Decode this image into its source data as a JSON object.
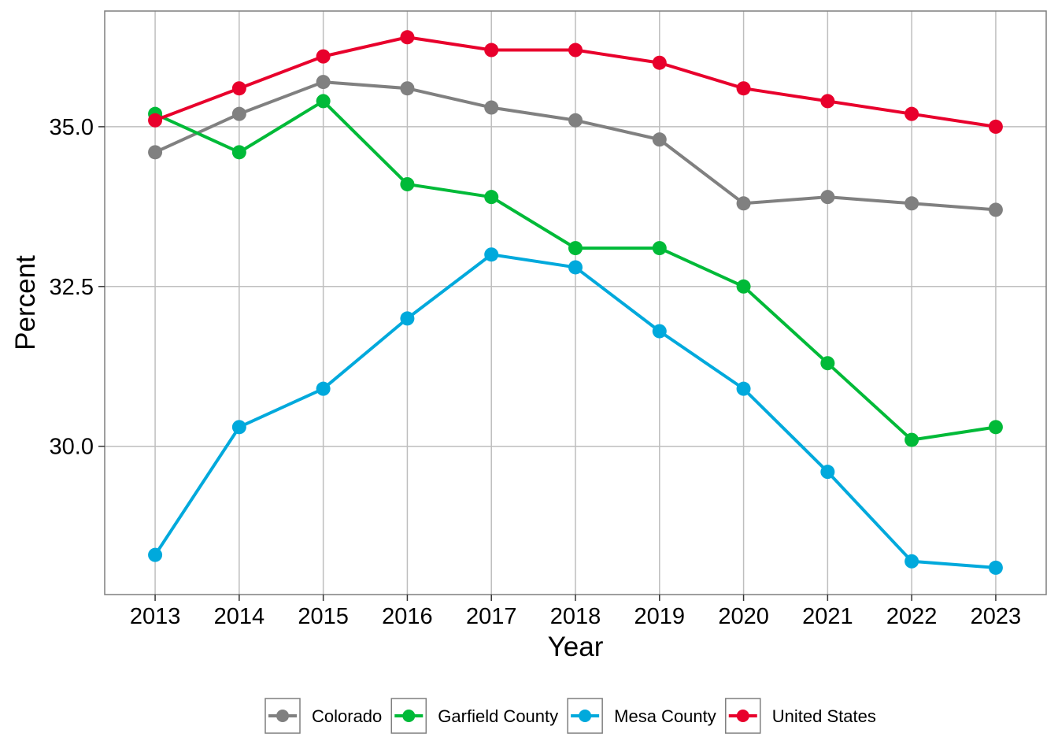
{
  "chart_data": {
    "type": "line",
    "title": "",
    "xlabel": "Year",
    "ylabel": "Percent",
    "x": [
      2013,
      2014,
      2015,
      2016,
      2017,
      2018,
      2019,
      2020,
      2021,
      2022,
      2023
    ],
    "x_tick_labels": [
      "2013",
      "2014",
      "2015",
      "2016",
      "2017",
      "2018",
      "2019",
      "2020",
      "2021",
      "2022",
      "2023"
    ],
    "y_ticks": [
      30.0,
      32.5,
      35.0
    ],
    "y_tick_labels": [
      "30.0",
      "32.5",
      "35.0"
    ],
    "xlim": [
      2012.4,
      2023.6
    ],
    "ylim": [
      27.68,
      36.81
    ],
    "grid": true,
    "legend_position": "bottom",
    "series": [
      {
        "name": "Colorado",
        "color": "#808080",
        "values": [
          34.6,
          35.2,
          35.7,
          35.6,
          35.3,
          35.1,
          34.8,
          33.8,
          33.9,
          33.8,
          33.7
        ]
      },
      {
        "name": "Garfield County",
        "color": "#00BA38",
        "values": [
          35.2,
          34.6,
          35.4,
          34.1,
          33.9,
          33.1,
          33.1,
          32.5,
          31.3,
          30.1,
          30.3
        ]
      },
      {
        "name": "Mesa County",
        "color": "#00A9DC",
        "values": [
          28.3,
          30.3,
          30.9,
          32.0,
          33.0,
          32.8,
          31.8,
          30.9,
          29.6,
          28.2,
          28.1
        ]
      },
      {
        "name": "United States",
        "color": "#E8002C",
        "values": [
          35.1,
          35.6,
          36.1,
          36.4,
          36.2,
          36.2,
          36.0,
          35.6,
          35.4,
          35.2,
          35.0
        ]
      }
    ]
  }
}
